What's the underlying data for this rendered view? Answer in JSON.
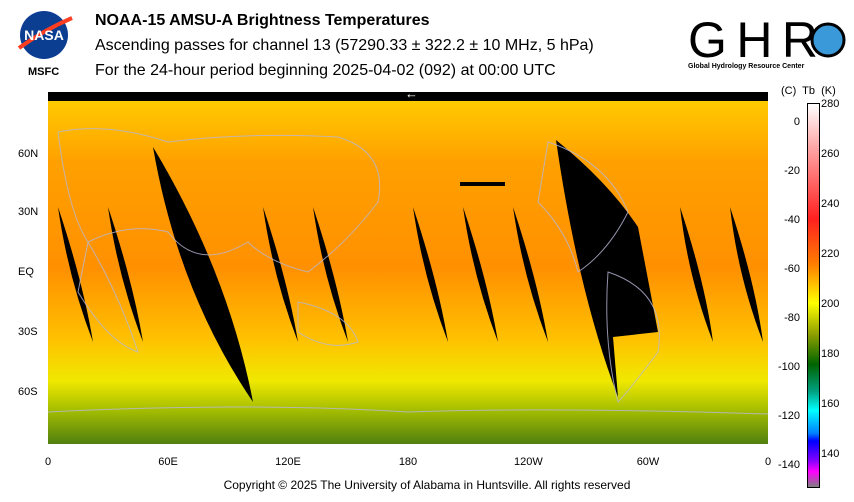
{
  "header": {
    "title": "NOAA-15 AMSU-A Brightness Temperatures",
    "subtitle": "Ascending passes for channel 13 (57290.33 ± 322.2 ± 10 MHz, 5 hPa)",
    "period": "For the 24-hour period beginning 2025-04-02 (092) at 00:00 UTC"
  },
  "logos": {
    "nasa": "NASA",
    "nasa_caption": "MSFC",
    "ghrc": "GHRC",
    "ghrc_caption": "Global Hydrology Resource Center"
  },
  "map": {
    "lat_labels": [
      "60N",
      "30N",
      "EQ",
      "30S",
      "60S"
    ],
    "lon_labels": [
      "0",
      "60E",
      "120E",
      "180",
      "120W",
      "60W",
      "0"
    ],
    "direction_marker": "←"
  },
  "colorbar": {
    "header": "(C)  Tb  (K)",
    "kelvin_ticks": [
      "280",
      "260",
      "240",
      "220",
      "200",
      "180",
      "160",
      "140"
    ],
    "celsius_ticks": [
      "0",
      "-20",
      "-40",
      "-60",
      "-80",
      "-100",
      "-120",
      "-140"
    ],
    "colors": [
      "#ffffff",
      "#ff2020",
      "#ff8000",
      "#ffff00",
      "#006400",
      "#00ffff",
      "#0000ff",
      "#ff00ff",
      "#808080"
    ]
  },
  "footer": {
    "copyright": "Copyright © 2025 The University of Alabama in Huntsville.  All rights reserved"
  }
}
